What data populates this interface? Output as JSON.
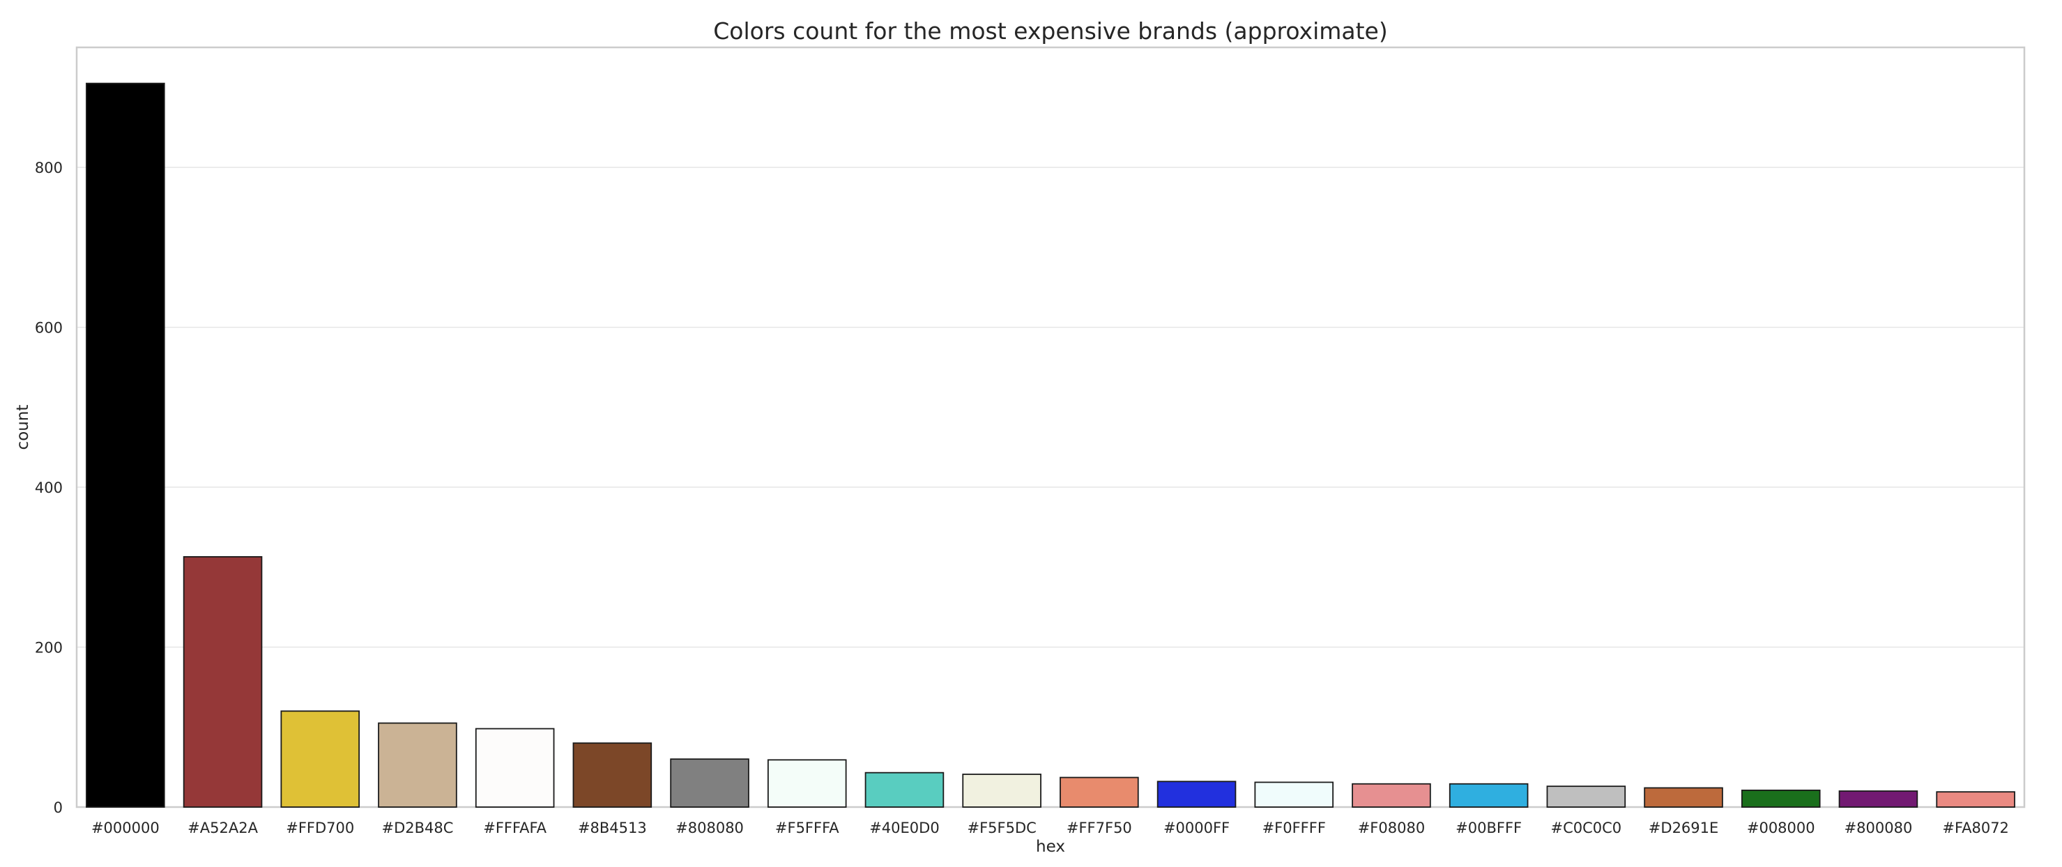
{
  "chart_data": {
    "type": "bar",
    "title": "Colors count for the most expensive brands (approximate)",
    "xlabel": "hex",
    "ylabel": "count",
    "ylim": [
      0,
      950
    ],
    "yticks": [
      0,
      200,
      400,
      600,
      800
    ],
    "grid": true,
    "categories": [
      "#000000",
      "#A52A2A",
      "#FFD700",
      "#D2B48C",
      "#FFFAFA",
      "#8B4513",
      "#808080",
      "#F5FFFA",
      "#40E0D0",
      "#F5F5DC",
      "#FF7F50",
      "#0000FF",
      "#F0FFFF",
      "#F08080",
      "#00BFFF",
      "#C0C0C0",
      "#D2691E",
      "#008000",
      "#800080",
      "#FA8072"
    ],
    "values": [
      905,
      313,
      120,
      105,
      98,
      80,
      60,
      59,
      43,
      41,
      37,
      32,
      31,
      29,
      29,
      26,
      24,
      21,
      20,
      19
    ],
    "bar_colors": [
      "#000000",
      "#953838",
      "#dfc136",
      "#cbb395",
      "#fdfcfb",
      "#7c4728",
      "#808080",
      "#f4fdf9",
      "#59cdc0",
      "#f1f1e0",
      "#e88b6d",
      "#2230de",
      "#f0fcfc",
      "#e69091",
      "#2fafe0",
      "#bfbfbf",
      "#bd6a3c",
      "#1a6f1c",
      "#721a72",
      "#ea8a82"
    ]
  }
}
